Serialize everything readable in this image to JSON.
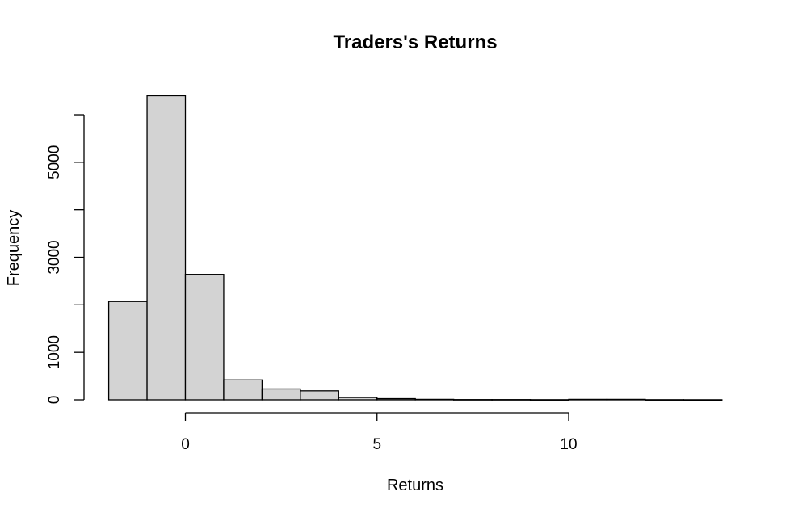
{
  "chart_data": {
    "type": "bar",
    "title": "Traders's Returns",
    "xlabel": "Returns",
    "ylabel": "Frequency",
    "bins": [
      {
        "from": -2,
        "to": -1,
        "count": 2070
      },
      {
        "from": -1,
        "to": 0,
        "count": 6400
      },
      {
        "from": 0,
        "to": 1,
        "count": 2640
      },
      {
        "from": 1,
        "to": 2,
        "count": 420
      },
      {
        "from": 2,
        "to": 3,
        "count": 230
      },
      {
        "from": 3,
        "to": 4,
        "count": 190
      },
      {
        "from": 4,
        "to": 5,
        "count": 50
      },
      {
        "from": 5,
        "to": 6,
        "count": 25
      },
      {
        "from": 6,
        "to": 7,
        "count": 10
      },
      {
        "from": 7,
        "to": 8,
        "count": 5
      },
      {
        "from": 8,
        "to": 9,
        "count": 5
      },
      {
        "from": 9,
        "to": 10,
        "count": 3
      },
      {
        "from": 10,
        "to": 11,
        "count": 10
      },
      {
        "from": 11,
        "to": 12,
        "count": 10
      },
      {
        "from": 12,
        "to": 13,
        "count": 3
      },
      {
        "from": 13,
        "to": 14,
        "count": 2
      }
    ],
    "xlim": [
      -2,
      14
    ],
    "ylim": [
      0,
      6400
    ],
    "x_ticks": [
      0,
      5,
      10
    ],
    "x_tick_labels": [
      "0",
      "5",
      "10"
    ],
    "y_ticks": [
      0,
      1000,
      2000,
      3000,
      4000,
      5000,
      6000
    ],
    "y_tick_labels": [
      "0",
      "1000",
      "",
      "3000",
      "",
      "5000",
      ""
    ],
    "x_axis_range": [
      0,
      10
    ],
    "y_axis_range": [
      0,
      6000
    ],
    "colors": {
      "bar_fill": "#d3d3d3",
      "bar_stroke": "#000000"
    },
    "grid": false,
    "legend": "none"
  }
}
